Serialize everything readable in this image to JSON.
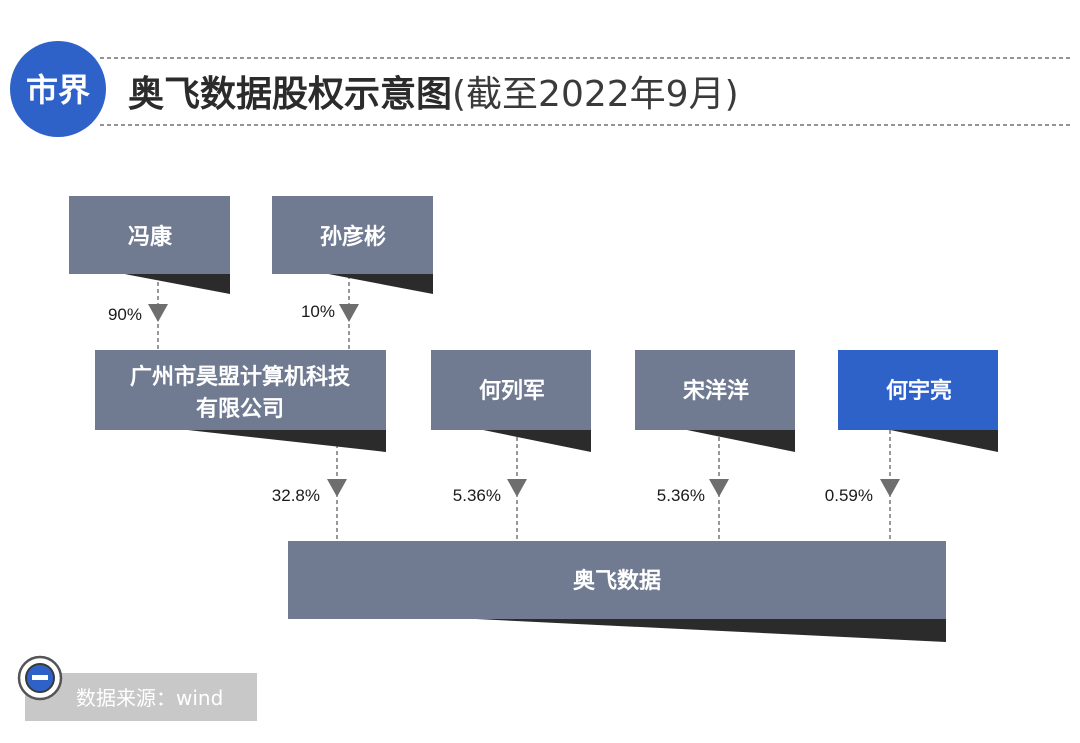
{
  "header": {
    "badge": "市界",
    "title_bold": "奥飞数据股权示意图",
    "title_light": "(截至2022年9月)"
  },
  "nodes": {
    "feng_kang": "冯康",
    "sun_yanbin": "孙彦彬",
    "haomeng_line1": "广州市昊盟计算机科技",
    "haomeng_line2": "有限公司",
    "he_liejun": "何列军",
    "song_yangyang": "宋洋洋",
    "he_yuliang": "何宇亮",
    "aofei": "奥飞数据"
  },
  "edges": [
    {
      "from": "冯康",
      "to": "广州市昊盟计算机科技有限公司",
      "label": "90%"
    },
    {
      "from": "孙彦彬",
      "to": "广州市昊盟计算机科技有限公司",
      "label": "10%"
    },
    {
      "from": "广州市昊盟计算机科技有限公司",
      "to": "奥飞数据",
      "label": "32.8%"
    },
    {
      "from": "何列军",
      "to": "奥飞数据",
      "label": "5.36%"
    },
    {
      "from": "宋洋洋",
      "to": "奥飞数据",
      "label": "5.36%"
    },
    {
      "from": "何宇亮",
      "to": "奥飞数据",
      "label": "0.59%"
    }
  ],
  "footer": {
    "source": "数据来源：wind"
  },
  "colors": {
    "node": "#707b92",
    "highlight": "#2e62c9",
    "badge": "#2e62c9",
    "source_bg": "#c8c8c8"
  }
}
